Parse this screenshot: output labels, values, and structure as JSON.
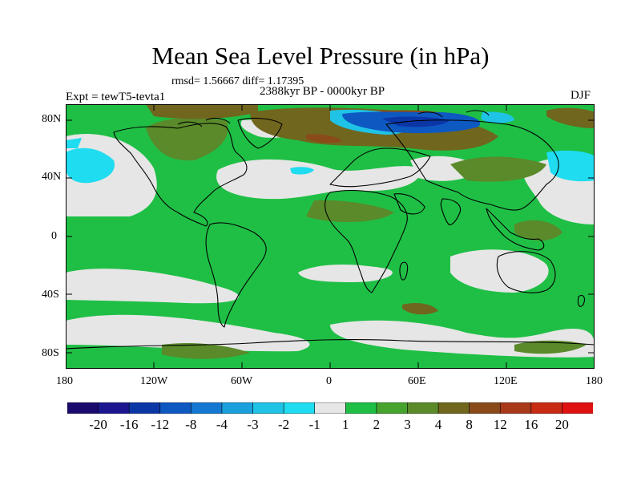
{
  "title": "Mean Sea Level Pressure (in hPa)",
  "stats": "rmsd= 1.56667 diff= 1.17395",
  "period": "2388kyr BP - 0000kyr BP",
  "experiment": "Expt = tewT5-tevta1",
  "season": "DJF",
  "lat_labels": [
    "80N",
    "40N",
    "0",
    "40S",
    "80S"
  ],
  "lon_labels": [
    "180",
    "120W",
    "60W",
    "0",
    "60E",
    "120E",
    "180"
  ],
  "colorbar": {
    "colors": [
      "#1a0a6e",
      "#1c1590",
      "#0b36a6",
      "#0e58c2",
      "#1478d2",
      "#1aa0dc",
      "#1fc3e6",
      "#1fdcf0",
      "#e6e6e6",
      "#1fbf45",
      "#45a32e",
      "#5a8a2a",
      "#70661e",
      "#8a4a1a",
      "#a83a1a",
      "#c82a14",
      "#e01010"
    ],
    "labels": [
      "-20",
      "-16",
      "-12",
      "-8",
      "-4",
      "-3",
      "-2",
      "-1",
      "1",
      "2",
      "3",
      "4",
      "8",
      "12",
      "16",
      "20"
    ]
  },
  "map_colors": {
    "base": "#1fbf45",
    "near_zero": "#e6e6e6",
    "pos_small": "#5a8a2a",
    "pos_medium": "#70661e",
    "pos_large": "#8a4a1a",
    "neg_small": "#1fdcf0",
    "neg_medium": "#1fc3e6",
    "neg_large": "#0e58c2",
    "neg_extreme": "#0b36a6"
  }
}
